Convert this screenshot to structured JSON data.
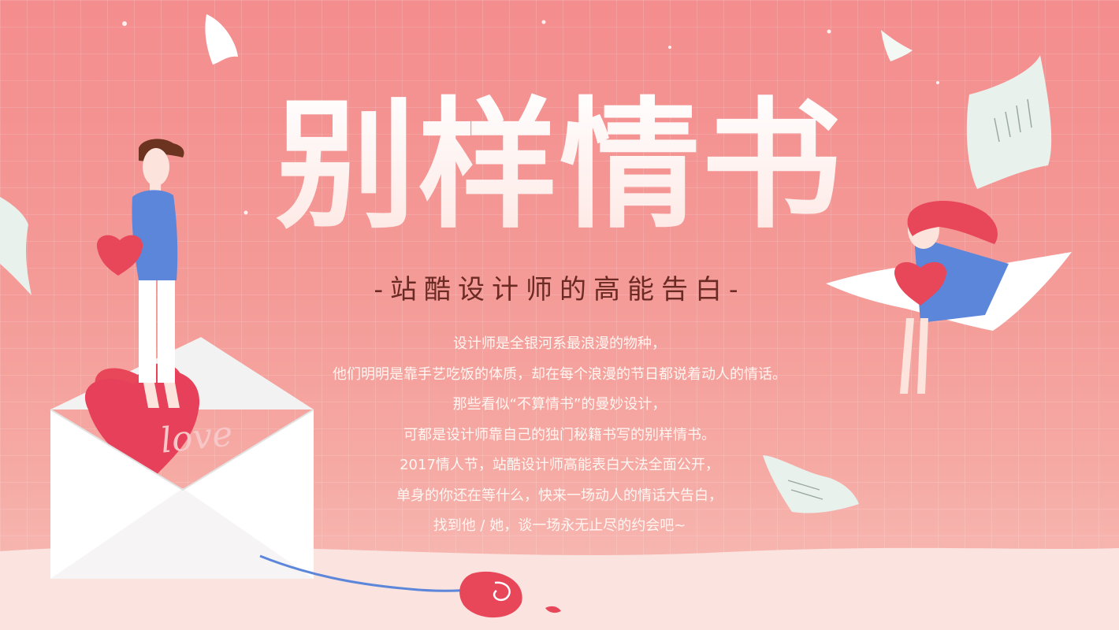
{
  "poster": {
    "title": "别样情书",
    "subtitle": "-站酷设计师的高能告白-",
    "lines": [
      "设计师是全银河系最浪漫的物种，",
      "他们明明是靠手艺吃饭的体质，却在每个浪漫的节日都说着动人的情话。",
      "那些看似“不算情书”的曼妙设计，",
      "可都是设计师靠自己的独门秘籍书写的别样情书。",
      "2017情人节，站酷设计师高能表白大法全面公开，",
      "单身的你还在等什么，快来一场动人的情话大告白，",
      "找到他 / 她，谈一场永无止尽的约会吧~"
    ],
    "heart_text": "love"
  },
  "colors": {
    "background": "#f48d8e",
    "heart": "#e8475a",
    "shirt": "#5b86d9",
    "hair": "#6b3320",
    "dress": "#5b86d9",
    "girl_hair": "#e8475a",
    "paper": "#e9f1ec",
    "subtitle": "#6b2a23"
  },
  "icons": [
    "envelope-icon",
    "heart-icon",
    "rose-icon",
    "paper-sheet-icon",
    "sparkle-icon"
  ]
}
